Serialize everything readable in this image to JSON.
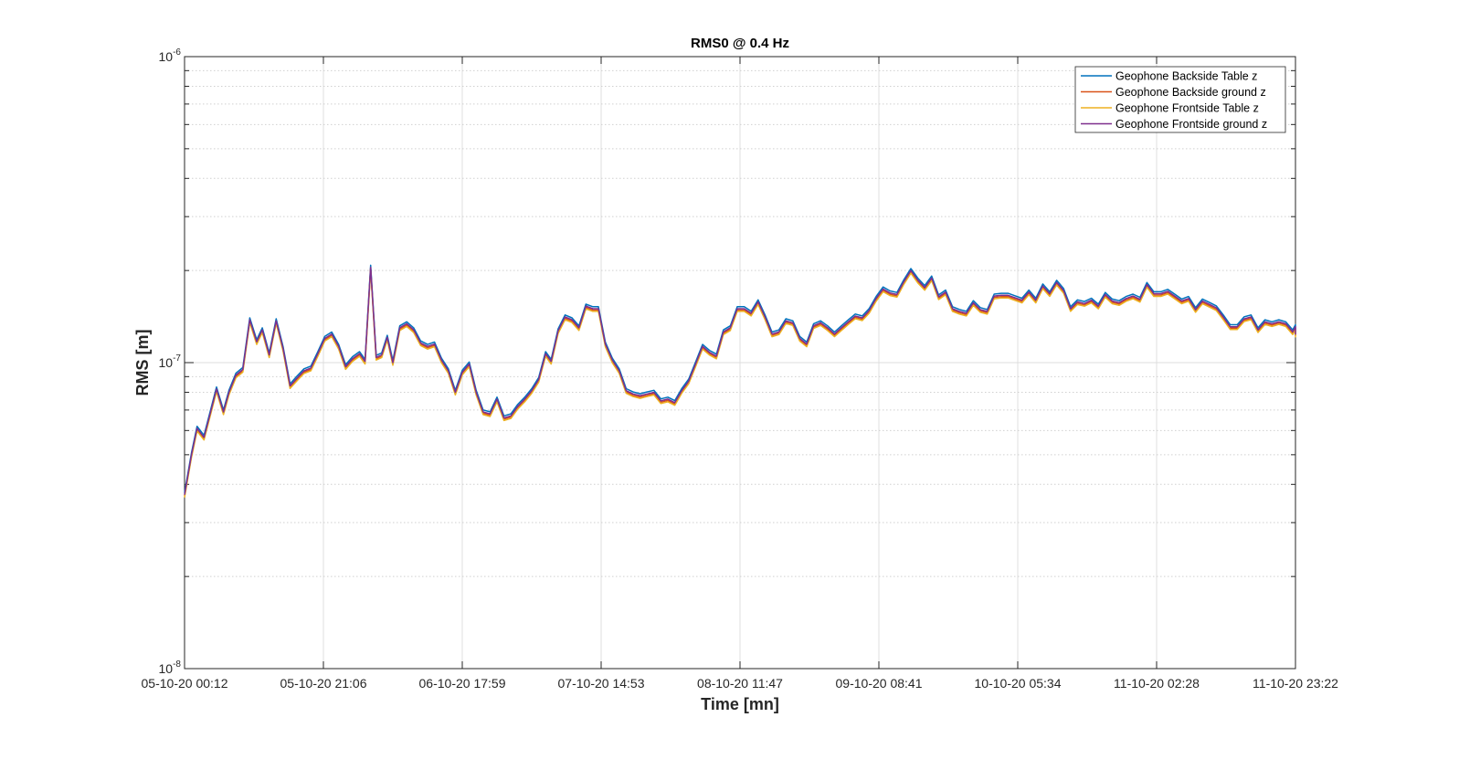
{
  "chart_data": {
    "type": "line",
    "title": "RMS0 @ 0.4 Hz",
    "xlabel": "Time [mn]",
    "ylabel": "RMS [m]",
    "yscale": "log",
    "ylim": [
      1e-08,
      1e-06
    ],
    "xlim": [
      0,
      8
    ],
    "grid": true,
    "legend_position": "top-right",
    "x_ticks": [
      {
        "value": 0,
        "label": "05-10-20 00:12"
      },
      {
        "value": 1,
        "label": "05-10-20 21:06"
      },
      {
        "value": 2,
        "label": "06-10-20 17:59"
      },
      {
        "value": 3,
        "label": "07-10-20 14:53"
      },
      {
        "value": 4,
        "label": "08-10-20 11:47"
      },
      {
        "value": 5,
        "label": "09-10-20 08:41"
      },
      {
        "value": 6,
        "label": "10-10-20 05:34"
      },
      {
        "value": 7,
        "label": "11-10-20 02:28"
      },
      {
        "value": 8,
        "label": "11-10-20 23:22"
      }
    ],
    "y_ticks": [
      {
        "value": 1e-08,
        "base": "10",
        "exp": "-8"
      },
      {
        "value": 1e-07,
        "base": "10",
        "exp": "-7"
      },
      {
        "value": 1e-06,
        "base": "10",
        "exp": "-6"
      }
    ],
    "base_series": [
      [
        0.0,
        3.7e-08
      ],
      [
        0.05,
        5e-08
      ],
      [
        0.09,
        6.1e-08
      ],
      [
        0.14,
        5.7e-08
      ],
      [
        0.18,
        6.7e-08
      ],
      [
        0.23,
        8.2e-08
      ],
      [
        0.28,
        6.9e-08
      ],
      [
        0.32,
        8e-08
      ],
      [
        0.37,
        9.1e-08
      ],
      [
        0.42,
        9.5e-08
      ],
      [
        0.47,
        1.38e-07
      ],
      [
        0.52,
        1.17e-07
      ],
      [
        0.56,
        1.28e-07
      ],
      [
        0.61,
        1.06e-07
      ],
      [
        0.66,
        1.37e-07
      ],
      [
        0.71,
        1.11e-07
      ],
      [
        0.76,
        8.4e-08
      ],
      [
        0.81,
        8.9e-08
      ],
      [
        0.86,
        9.4e-08
      ],
      [
        0.91,
        9.6e-08
      ],
      [
        0.96,
        1.07e-07
      ],
      [
        1.01,
        1.2e-07
      ],
      [
        1.06,
        1.24e-07
      ],
      [
        1.11,
        1.13e-07
      ],
      [
        1.16,
        9.7e-08
      ],
      [
        1.21,
        1.03e-07
      ],
      [
        1.26,
        1.07e-07
      ],
      [
        1.3,
        1.01e-07
      ],
      [
        1.34,
        2.05e-07
      ],
      [
        1.38,
        1.04e-07
      ],
      [
        1.42,
        1.06e-07
      ],
      [
        1.46,
        1.21e-07
      ],
      [
        1.5,
        1e-07
      ],
      [
        1.55,
        1.3e-07
      ],
      [
        1.6,
        1.34e-07
      ],
      [
        1.65,
        1.28e-07
      ],
      [
        1.7,
        1.16e-07
      ],
      [
        1.75,
        1.13e-07
      ],
      [
        1.8,
        1.15e-07
      ],
      [
        1.85,
        1.02e-07
      ],
      [
        1.9,
        9.4e-08
      ],
      [
        1.95,
        8e-08
      ],
      [
        2.0,
        9.3e-08
      ],
      [
        2.05,
        9.9e-08
      ],
      [
        2.1,
        8e-08
      ],
      [
        2.15,
        6.9e-08
      ],
      [
        2.2,
        6.8e-08
      ],
      [
        2.25,
        7.6e-08
      ],
      [
        2.3,
        6.6e-08
      ],
      [
        2.35,
        6.7e-08
      ],
      [
        2.4,
        7.2e-08
      ],
      [
        2.45,
        7.6e-08
      ],
      [
        2.5,
        8.1e-08
      ],
      [
        2.55,
        8.8e-08
      ],
      [
        2.6,
        1.07e-07
      ],
      [
        2.64,
        1.01e-07
      ],
      [
        2.69,
        1.27e-07
      ],
      [
        2.74,
        1.41e-07
      ],
      [
        2.79,
        1.38e-07
      ],
      [
        2.84,
        1.3e-07
      ],
      [
        2.89,
        1.53e-07
      ],
      [
        2.94,
        1.5e-07
      ],
      [
        2.98,
        1.5e-07
      ],
      [
        3.03,
        1.15e-07
      ],
      [
        3.08,
        1.02e-07
      ],
      [
        3.13,
        9.4e-08
      ],
      [
        3.18,
        8.1e-08
      ],
      [
        3.23,
        7.9e-08
      ],
      [
        3.28,
        7.8e-08
      ],
      [
        3.33,
        7.9e-08
      ],
      [
        3.38,
        8e-08
      ],
      [
        3.43,
        7.5e-08
      ],
      [
        3.48,
        7.6e-08
      ],
      [
        3.53,
        7.4e-08
      ],
      [
        3.58,
        8.1e-08
      ],
      [
        3.63,
        8.7e-08
      ],
      [
        3.68,
        9.9e-08
      ],
      [
        3.73,
        1.13e-07
      ],
      [
        3.78,
        1.08e-07
      ],
      [
        3.83,
        1.05e-07
      ],
      [
        3.88,
        1.26e-07
      ],
      [
        3.93,
        1.3e-07
      ],
      [
        3.98,
        1.5e-07
      ],
      [
        4.03,
        1.5e-07
      ],
      [
        4.08,
        1.45e-07
      ],
      [
        4.13,
        1.58e-07
      ],
      [
        4.18,
        1.41e-07
      ],
      [
        4.23,
        1.24e-07
      ],
      [
        4.28,
        1.26e-07
      ],
      [
        4.33,
        1.37e-07
      ],
      [
        4.38,
        1.35e-07
      ],
      [
        4.43,
        1.2e-07
      ],
      [
        4.48,
        1.15e-07
      ],
      [
        4.53,
        1.32e-07
      ],
      [
        4.58,
        1.35e-07
      ],
      [
        4.63,
        1.3e-07
      ],
      [
        4.68,
        1.24e-07
      ],
      [
        4.73,
        1.3e-07
      ],
      [
        4.78,
        1.36e-07
      ],
      [
        4.83,
        1.42e-07
      ],
      [
        4.88,
        1.4e-07
      ],
      [
        4.93,
        1.48e-07
      ],
      [
        4.98,
        1.62e-07
      ],
      [
        5.03,
        1.74e-07
      ],
      [
        5.08,
        1.69e-07
      ],
      [
        5.13,
        1.67e-07
      ],
      [
        5.18,
        1.84e-07
      ],
      [
        5.23,
        2e-07
      ],
      [
        5.28,
        1.86e-07
      ],
      [
        5.33,
        1.76e-07
      ],
      [
        5.38,
        1.89e-07
      ],
      [
        5.43,
        1.64e-07
      ],
      [
        5.48,
        1.7e-07
      ],
      [
        5.53,
        1.5e-07
      ],
      [
        5.58,
        1.47e-07
      ],
      [
        5.63,
        1.45e-07
      ],
      [
        5.68,
        1.57e-07
      ],
      [
        5.73,
        1.49e-07
      ],
      [
        5.78,
        1.47e-07
      ],
      [
        5.83,
        1.65e-07
      ],
      [
        5.88,
        1.66e-07
      ],
      [
        5.93,
        1.66e-07
      ],
      [
        5.98,
        1.63e-07
      ],
      [
        6.03,
        1.6e-07
      ],
      [
        6.08,
        1.7e-07
      ],
      [
        6.13,
        1.6e-07
      ],
      [
        6.18,
        1.78e-07
      ],
      [
        6.23,
        1.68e-07
      ],
      [
        6.28,
        1.83e-07
      ],
      [
        6.33,
        1.72e-07
      ],
      [
        6.38,
        1.5e-07
      ],
      [
        6.43,
        1.58e-07
      ],
      [
        6.48,
        1.56e-07
      ],
      [
        6.53,
        1.6e-07
      ],
      [
        6.58,
        1.53e-07
      ],
      [
        6.63,
        1.67e-07
      ],
      [
        6.68,
        1.59e-07
      ],
      [
        6.73,
        1.57e-07
      ],
      [
        6.78,
        1.62e-07
      ],
      [
        6.83,
        1.65e-07
      ],
      [
        6.88,
        1.61e-07
      ],
      [
        6.93,
        1.8e-07
      ],
      [
        6.98,
        1.68e-07
      ],
      [
        7.03,
        1.68e-07
      ],
      [
        7.08,
        1.71e-07
      ],
      [
        7.13,
        1.65e-07
      ],
      [
        7.18,
        1.59e-07
      ],
      [
        7.23,
        1.62e-07
      ],
      [
        7.28,
        1.49e-07
      ],
      [
        7.33,
        1.59e-07
      ],
      [
        7.38,
        1.55e-07
      ],
      [
        7.43,
        1.51e-07
      ],
      [
        7.48,
        1.41e-07
      ],
      [
        7.53,
        1.31e-07
      ],
      [
        7.58,
        1.31e-07
      ],
      [
        7.63,
        1.39e-07
      ],
      [
        7.68,
        1.41e-07
      ],
      [
        7.73,
        1.28e-07
      ],
      [
        7.78,
        1.36e-07
      ],
      [
        7.83,
        1.34e-07
      ],
      [
        7.88,
        1.36e-07
      ],
      [
        7.93,
        1.34e-07
      ],
      [
        7.98,
        1.26e-07
      ],
      [
        8.03,
        1.31e-07
      ],
      [
        8.08,
        1.28e-07
      ],
      [
        8.13,
        1.26e-07
      ],
      [
        8.18,
        1.24e-07
      ],
      [
        8.22,
        1.25e-07
      ]
    ],
    "series": [
      {
        "name": "Geophone Backside Table z",
        "color": "#0072BD",
        "scale": 1.015
      },
      {
        "name": "Geophone Backside ground z",
        "color": "#D95319",
        "scale": 0.99
      },
      {
        "name": "Geophone Frontside Table z",
        "color": "#EDB120",
        "scale": 0.98
      },
      {
        "name": "Geophone Frontside ground z",
        "color": "#7E2F8E",
        "scale": 1.0
      }
    ]
  }
}
